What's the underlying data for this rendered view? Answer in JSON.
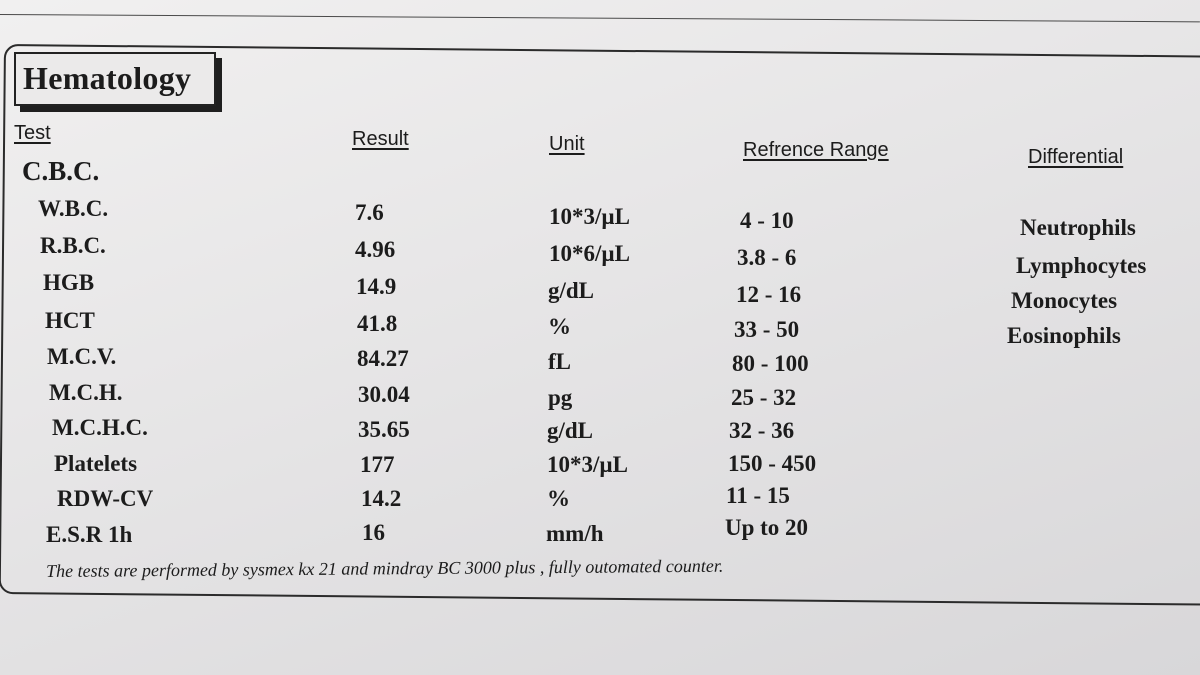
{
  "title": "Hematology",
  "headers": {
    "test": "Test",
    "result": "Result",
    "unit": "Unit",
    "range": "Refrence Range",
    "differential": "Differential"
  },
  "group": "C.B.C.",
  "rows": [
    {
      "test": "W.B.C.",
      "result": "7.6",
      "unit": "10*3/µL",
      "range": "4 - 10"
    },
    {
      "test": "R.B.C.",
      "result": "4.96",
      "unit": "10*6/µL",
      "range": "3.8 - 6"
    },
    {
      "test": "HGB",
      "result": "14.9",
      "unit": "g/dL",
      "range": "12 - 16"
    },
    {
      "test": "HCT",
      "result": "41.8",
      "unit": "%",
      "range": "33 - 50"
    },
    {
      "test": "M.C.V.",
      "result": "84.27",
      "unit": "fL",
      "range": "80 - 100"
    },
    {
      "test": "M.C.H.",
      "result": "30.04",
      "unit": "pg",
      "range": "25 - 32"
    },
    {
      "test": "M.C.H.C.",
      "result": "35.65",
      "unit": "g/dL",
      "range": "32 - 36"
    },
    {
      "test": "Platelets",
      "result": "177",
      "unit": "10*3/µL",
      "range": "150 - 450"
    },
    {
      "test": "RDW-CV",
      "result": "14.2",
      "unit": "%",
      "range": "11 - 15"
    },
    {
      "test": "E.S.R 1h",
      "result": "16",
      "unit": "mm/h",
      "range": "Up to 20"
    }
  ],
  "differential": [
    "Neutrophils",
    "Lymphocytes",
    "Monocytes",
    "Eosinophils"
  ],
  "footer": "The tests are performed by sysmex kx 21 and mindray  BC 3000 plus , fully outomated counter."
}
